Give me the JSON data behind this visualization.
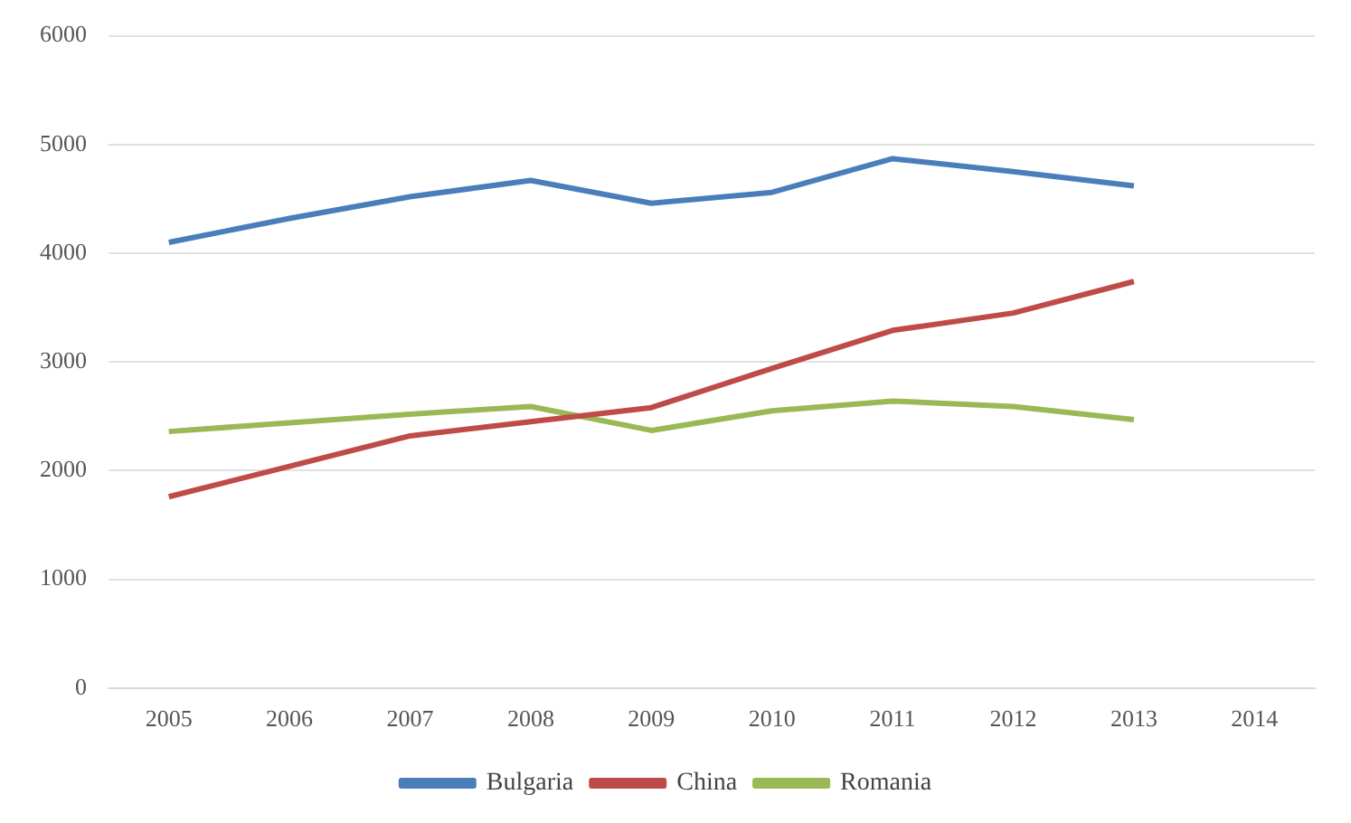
{
  "chart_data": {
    "type": "line",
    "categories": [
      "2005",
      "2006",
      "2007",
      "2008",
      "2009",
      "2010",
      "2011",
      "2012",
      "2013",
      "2014"
    ],
    "series": [
      {
        "name": "Bulgaria",
        "color": "#4a7ebb",
        "values": [
          4100,
          4320,
          4520,
          4670,
          4460,
          4560,
          4870,
          4750,
          4620,
          null
        ]
      },
      {
        "name": "China",
        "color": "#be4b48",
        "values": [
          1760,
          2040,
          2320,
          2450,
          2580,
          2940,
          3290,
          3450,
          3740,
          null
        ]
      },
      {
        "name": "Romania",
        "color": "#98b954",
        "values": [
          2360,
          2440,
          2520,
          2590,
          2370,
          2550,
          2640,
          2590,
          2470,
          null
        ]
      }
    ],
    "ylim": [
      0,
      6000
    ],
    "yticks": [
      0,
      1000,
      2000,
      3000,
      4000,
      5000,
      6000
    ],
    "grid": "y",
    "legend": "bottom",
    "marker": "none"
  }
}
